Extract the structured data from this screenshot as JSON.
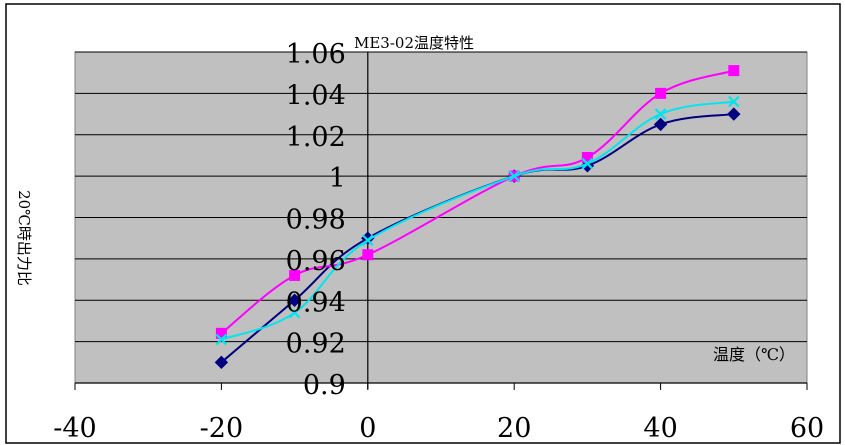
{
  "chart_data": {
    "type": "line",
    "title": "ME3-02温度特性",
    "xlabel": "温度（℃）",
    "ylabel": "20℃時出力比",
    "xlim": [
      -40,
      60
    ],
    "ylim": [
      0.9,
      1.06
    ],
    "x_ticks": [
      "-40",
      "-20",
      "0",
      "20",
      "40",
      "60"
    ],
    "y_ticks": [
      "0.9",
      "0.92",
      "0.94",
      "0.96",
      "0.98",
      "1",
      "1.02",
      "1.04",
      "1.06"
    ],
    "grid": true,
    "legend": "none",
    "series": [
      {
        "color": "#000080",
        "marker": "diamond",
        "x": [
          -20,
          -10,
          0,
          20,
          30,
          40,
          50
        ],
        "y": [
          0.91,
          0.94,
          0.97,
          1.0,
          1.005,
          1.025,
          1.03
        ]
      },
      {
        "color": "#ff00ff",
        "marker": "square",
        "x": [
          -20,
          -10,
          0,
          20,
          30,
          40,
          50
        ],
        "y": [
          0.924,
          0.952,
          0.962,
          1.0,
          1.009,
          1.04,
          1.051
        ]
      },
      {
        "color": "#00e5ee",
        "marker": "x",
        "x": [
          -20,
          -10,
          0,
          20,
          30,
          40,
          50
        ],
        "y": [
          0.921,
          0.934,
          0.969,
          1.0,
          1.006,
          1.03,
          1.036
        ]
      }
    ]
  }
}
